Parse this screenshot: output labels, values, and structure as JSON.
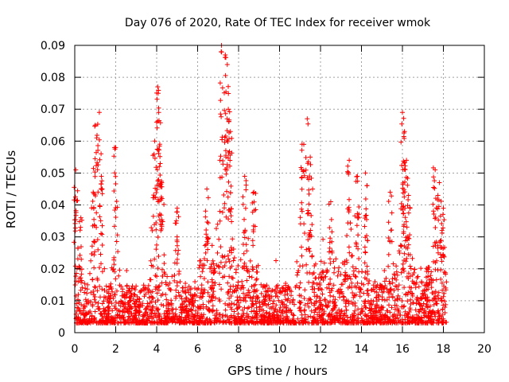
{
  "chart_data": {
    "type": "scatter",
    "title": "Day 076 of 2020, Rate Of TEC Index for receiver wmok",
    "xlabel": "GPS time / hours",
    "ylabel": "ROTI / TECUs",
    "xlim": [
      0,
      20
    ],
    "ylim": [
      0,
      0.09
    ],
    "xticks": [
      "0",
      "2",
      "4",
      "6",
      "8",
      "10",
      "12",
      "14",
      "16",
      "18",
      "20"
    ],
    "yticks": [
      "0",
      "0.01",
      "0.02",
      "0.03",
      "0.04",
      "0.05",
      "0.06",
      "0.07",
      "0.08",
      "0.09"
    ],
    "grid": true,
    "marker": "+",
    "color": "#ff0000",
    "data_range_hours": [
      0,
      18.15
    ],
    "series": [
      {
        "values_description": "dense ROTI scatter; baseline mostly 0.003–0.02 TECU",
        "peaks": [
          {
            "x": 0.05,
            "y": 0.051
          },
          {
            "x": 0.3,
            "y": 0.036
          },
          {
            "x": 0.9,
            "y": 0.044
          },
          {
            "x": 1.0,
            "y": 0.065
          },
          {
            "x": 1.2,
            "y": 0.069
          },
          {
            "x": 1.3,
            "y": 0.049
          },
          {
            "x": 2.0,
            "y": 0.058
          },
          {
            "x": 3.9,
            "y": 0.06
          },
          {
            "x": 4.05,
            "y": 0.077
          },
          {
            "x": 4.1,
            "y": 0.069
          },
          {
            "x": 4.15,
            "y": 0.059
          },
          {
            "x": 4.25,
            "y": 0.047
          },
          {
            "x": 5.0,
            "y": 0.039
          },
          {
            "x": 6.45,
            "y": 0.045
          },
          {
            "x": 7.15,
            "y": 0.088
          },
          {
            "x": 7.35,
            "y": 0.087
          },
          {
            "x": 7.45,
            "y": 0.084
          },
          {
            "x": 7.5,
            "y": 0.07
          },
          {
            "x": 7.6,
            "y": 0.063
          },
          {
            "x": 8.3,
            "y": 0.049
          },
          {
            "x": 8.75,
            "y": 0.044
          },
          {
            "x": 11.1,
            "y": 0.059
          },
          {
            "x": 11.35,
            "y": 0.067
          },
          {
            "x": 11.5,
            "y": 0.055
          },
          {
            "x": 12.5,
            "y": 0.041
          },
          {
            "x": 13.4,
            "y": 0.054
          },
          {
            "x": 13.8,
            "y": 0.049
          },
          {
            "x": 14.2,
            "y": 0.05
          },
          {
            "x": 15.4,
            "y": 0.044
          },
          {
            "x": 16.0,
            "y": 0.069
          },
          {
            "x": 16.1,
            "y": 0.063
          },
          {
            "x": 16.2,
            "y": 0.054
          },
          {
            "x": 16.3,
            "y": 0.043
          },
          {
            "x": 17.6,
            "y": 0.051
          },
          {
            "x": 17.8,
            "y": 0.047
          },
          {
            "x": 18.0,
            "y": 0.039
          }
        ]
      }
    ]
  }
}
